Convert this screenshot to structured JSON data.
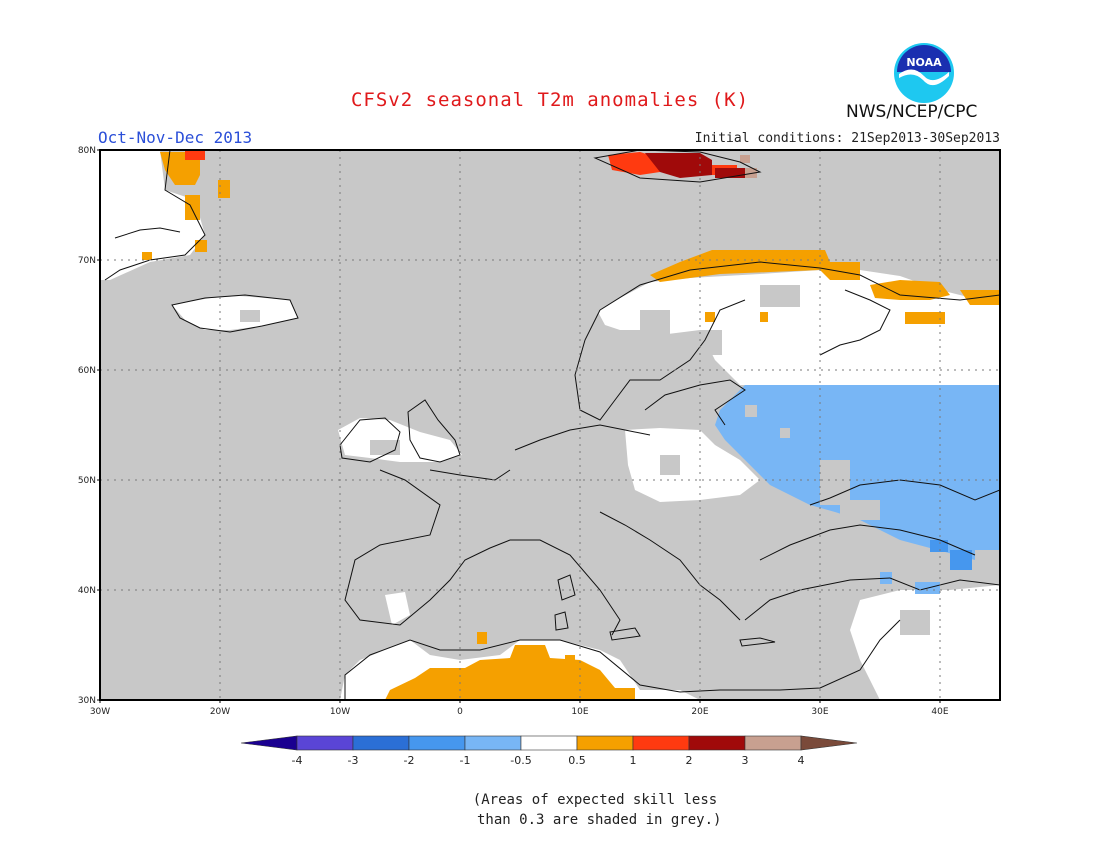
{
  "header": {
    "title": "CFSv2 seasonal T2m anomalies (K)",
    "period": "Oct-Nov-Dec 2013",
    "initial_conditions": "Initial conditions: 21Sep2013-30Sep2013",
    "agency": "NWS/NCEP/CPC",
    "logo_text": "NOAA"
  },
  "map": {
    "projection": "cylindrical",
    "lon_range": [
      -30,
      45
    ],
    "lat_range": [
      30,
      80
    ],
    "lat_ticks": [
      "30N",
      "40N",
      "50N",
      "60N",
      "70N",
      "80N"
    ],
    "lon_ticks": [
      "30W",
      "20W",
      "10W",
      "0",
      "10E",
      "20E",
      "30E",
      "40E"
    ],
    "grid": true,
    "grey_color": "#c8c8c8",
    "ocean_color": "#c8c8c8"
  },
  "legend": {
    "labels": [
      "-4",
      "-3",
      "-2",
      "-1",
      "-0.5",
      "0.5",
      "1",
      "2",
      "3",
      "4"
    ],
    "colors": [
      "#1a0090",
      "#5a45d6",
      "#2b6fd6",
      "#4697ee",
      "#78b6f5",
      "#ffffff",
      "#f5a000",
      "#ff3a10",
      "#a00a0a",
      "#c8a090",
      "#7a4a3a"
    ]
  },
  "note": "(Areas of expected skill less\n than 0.3 are shaded in grey.)"
}
